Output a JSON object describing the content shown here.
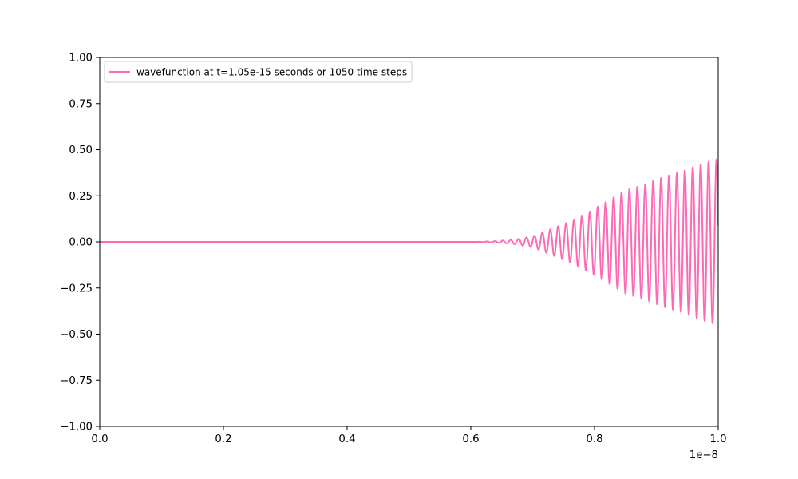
{
  "chart_data": {
    "type": "line",
    "title": "",
    "xlabel": "",
    "ylabel": "",
    "x_offset_label": "1e−8",
    "xlim": [
      0.0,
      1.0
    ],
    "ylim": [
      -1.0,
      1.0
    ],
    "x_ticks": [
      0.0,
      0.2,
      0.4,
      0.6,
      0.8,
      1.0
    ],
    "x_tick_labels": [
      "0.0",
      "0.2",
      "0.4",
      "0.6",
      "0.8",
      "1.0"
    ],
    "y_ticks": [
      -1.0,
      -0.75,
      -0.5,
      -0.25,
      0.0,
      0.25,
      0.5,
      0.75,
      1.0
    ],
    "y_tick_labels": [
      "−1.00",
      "−0.75",
      "−0.50",
      "−0.25",
      "0.00",
      "0.25",
      "0.50",
      "0.75",
      "1.00"
    ],
    "grid": false,
    "legend_position": "top-left",
    "series": [
      {
        "name": "wavefunction at t=1.05e-15 seconds or 1050 time steps",
        "color": "#ff69b4",
        "wave": {
          "zero_until_x": 0.61,
          "oscillation_period_x": 0.0128,
          "peak_amplitudes": [
            [
              0.61,
              0.0
            ],
            [
              0.64,
              0.004
            ],
            [
              0.67,
              0.012
            ],
            [
              0.7,
              0.03
            ],
            [
              0.73,
              0.07
            ],
            [
              0.76,
              0.11
            ],
            [
              0.79,
              0.16
            ],
            [
              0.82,
              0.22
            ],
            [
              0.85,
              0.28
            ],
            [
              0.88,
              0.31
            ],
            [
              0.91,
              0.35
            ],
            [
              0.94,
              0.38
            ],
            [
              0.97,
              0.42
            ],
            [
              1.0,
              0.45
            ]
          ]
        }
      }
    ]
  }
}
